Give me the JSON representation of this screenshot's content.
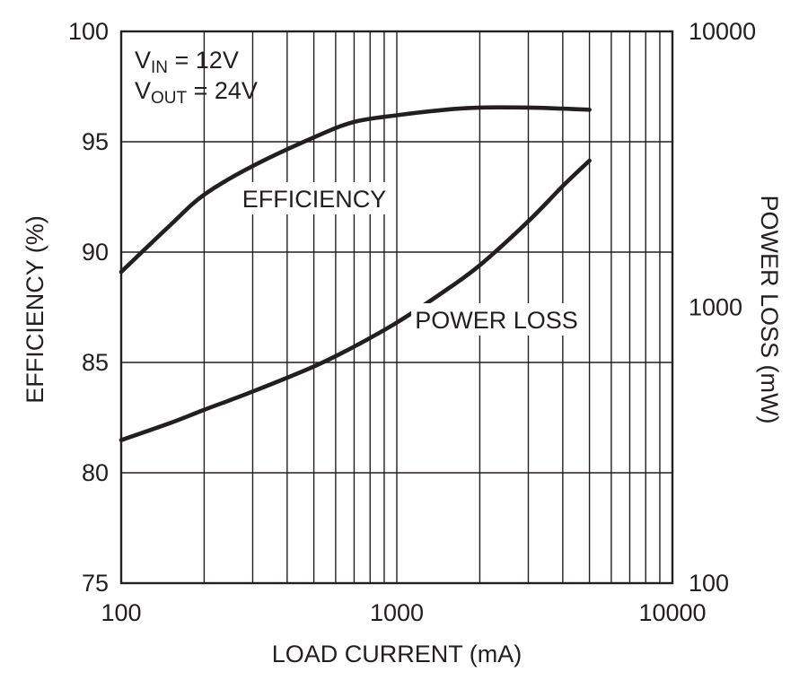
{
  "chart_data": {
    "type": "line",
    "xlabel": "LOAD CURRENT (mA)",
    "ylabel": "EFFICIENCY (%)",
    "y2label": "POWER LOSS (mW)",
    "xscale": "log",
    "xlim": [
      100,
      10000
    ],
    "ylim": [
      75,
      100
    ],
    "y2scale": "log",
    "y2lim": [
      100,
      10000
    ],
    "grid": true,
    "x_ticks": [
      "100",
      "1000",
      "10000"
    ],
    "y_ticks": [
      "75",
      "80",
      "85",
      "90",
      "95",
      "100"
    ],
    "y2_ticks": [
      "100",
      "1000",
      "10000"
    ],
    "conditions": {
      "vin": {
        "main": "V",
        "sub": "IN",
        "rest": " = 12V"
      },
      "vout": {
        "main": "V",
        "sub": "OUT",
        "rest": " = 24V"
      }
    },
    "series": [
      {
        "name": "EFFICIENCY",
        "axis": "left",
        "points": [
          [
            100,
            89.1
          ],
          [
            150,
            91.2
          ],
          [
            200,
            92.6
          ],
          [
            300,
            93.9
          ],
          [
            500,
            95.2
          ],
          [
            700,
            95.9
          ],
          [
            1000,
            96.2
          ],
          [
            1500,
            96.45
          ],
          [
            2000,
            96.55
          ],
          [
            3000,
            96.55
          ],
          [
            4000,
            96.5
          ],
          [
            5000,
            96.45
          ]
        ]
      },
      {
        "name": "POWER LOSS",
        "axis": "right",
        "points": [
          [
            100,
            330
          ],
          [
            150,
            380
          ],
          [
            200,
            425
          ],
          [
            300,
            495
          ],
          [
            500,
            610
          ],
          [
            700,
            720
          ],
          [
            1000,
            880
          ],
          [
            1500,
            1150
          ],
          [
            2000,
            1420
          ],
          [
            3000,
            2050
          ],
          [
            4000,
            2750
          ],
          [
            5000,
            3400
          ]
        ]
      }
    ]
  }
}
